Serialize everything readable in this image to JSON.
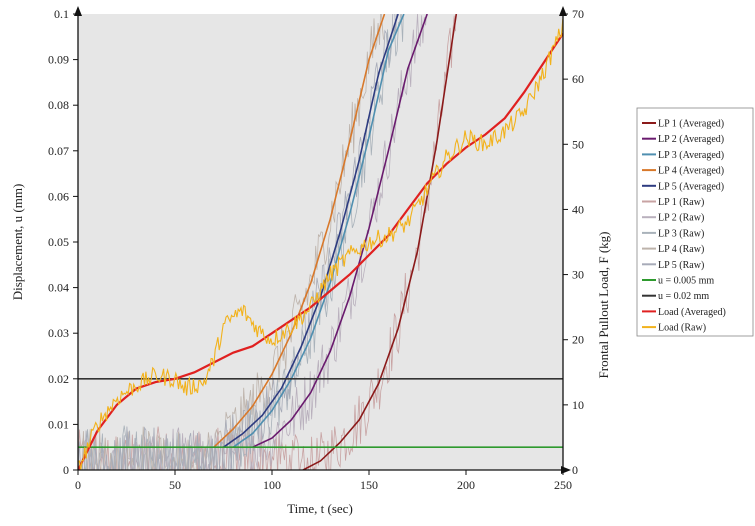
{
  "chart_data": {
    "type": "line",
    "xlabel": "Time, t (sec)",
    "ylabel_left": "Displacement,  u  (mm)",
    "ylabel_right": "Frontal Pullout Load, F (kg)",
    "xlim": [
      0,
      250
    ],
    "ylim_left": [
      0,
      0.1
    ],
    "ylim_right": [
      0,
      70
    ],
    "x_ticks": [
      "0",
      "50",
      "100",
      "150",
      "200",
      "250"
    ],
    "y_ticks_left": [
      "0",
      "0.01",
      "0.02",
      "0.03",
      "0.04",
      "0.05",
      "0.06",
      "0.07",
      "0.08",
      "0.09",
      "0.1"
    ],
    "y_ticks_right": [
      "0",
      "10",
      "20",
      "30",
      "40",
      "50",
      "60",
      "70"
    ],
    "grid": false,
    "legend_position": "right",
    "series": [
      {
        "name": "LP 1 (Averaged)",
        "axis": "left",
        "color": "#8b1a1a",
        "x": [
          116,
          125,
          135,
          145,
          155,
          165,
          175,
          185,
          195
        ],
        "y": [
          0,
          0.002,
          0.006,
          0.011,
          0.019,
          0.031,
          0.048,
          0.072,
          0.1
        ]
      },
      {
        "name": "LP 2 (Averaged)",
        "axis": "left",
        "color": "#6a1b6e",
        "x": [
          90,
          100,
          110,
          120,
          130,
          140,
          150,
          160,
          170,
          180
        ],
        "y": [
          0.005,
          0.007,
          0.011,
          0.017,
          0.026,
          0.038,
          0.053,
          0.07,
          0.088,
          0.1
        ]
      },
      {
        "name": "LP 3 (Averaged)",
        "axis": "left",
        "color": "#4f8fb0",
        "x": [
          80,
          90,
          100,
          110,
          120,
          130,
          140,
          150,
          160,
          168
        ],
        "y": [
          0.005,
          0.008,
          0.013,
          0.02,
          0.029,
          0.041,
          0.056,
          0.073,
          0.092,
          0.1
        ]
      },
      {
        "name": "LP 4 (Averaged)",
        "axis": "left",
        "color": "#d8782a",
        "x": [
          70,
          80,
          90,
          100,
          110,
          120,
          130,
          140,
          150,
          158
        ],
        "y": [
          0.005,
          0.009,
          0.014,
          0.021,
          0.03,
          0.041,
          0.055,
          0.072,
          0.09,
          0.1
        ]
      },
      {
        "name": "LP 5 (Averaged)",
        "axis": "left",
        "color": "#2d3b80",
        "x": [
          75,
          85,
          95,
          105,
          115,
          125,
          135,
          145,
          155,
          165
        ],
        "y": [
          0.005,
          0.008,
          0.012,
          0.018,
          0.027,
          0.038,
          0.052,
          0.068,
          0.087,
          0.1
        ]
      },
      {
        "name": "LP 1 (Raw)",
        "axis": "left",
        "color": "#c8a3a3",
        "x": [
          116,
          125,
          135,
          145,
          155,
          165,
          175,
          185,
          195
        ],
        "y": [
          0,
          0.002,
          0.006,
          0.011,
          0.019,
          0.031,
          0.048,
          0.072,
          0.1
        ]
      },
      {
        "name": "LP 2 (Raw)",
        "axis": "left",
        "color": "#b9b0bd",
        "x": [
          90,
          100,
          110,
          120,
          130,
          140,
          150,
          160,
          170,
          180
        ],
        "y": [
          0.005,
          0.007,
          0.011,
          0.017,
          0.026,
          0.038,
          0.053,
          0.07,
          0.088,
          0.1
        ]
      },
      {
        "name": "LP 3 (Raw)",
        "axis": "left",
        "color": "#a9b2ba",
        "x": [
          80,
          90,
          100,
          110,
          120,
          130,
          140,
          150,
          160,
          168
        ],
        "y": [
          0.005,
          0.008,
          0.013,
          0.02,
          0.029,
          0.041,
          0.056,
          0.073,
          0.092,
          0.1
        ]
      },
      {
        "name": "LP 4 (Raw)",
        "axis": "left",
        "color": "#bdb3ab",
        "x": [
          70,
          80,
          90,
          100,
          110,
          120,
          130,
          140,
          150,
          158
        ],
        "y": [
          0.005,
          0.009,
          0.014,
          0.021,
          0.03,
          0.041,
          0.055,
          0.072,
          0.09,
          0.1
        ]
      },
      {
        "name": "LP 5 (Raw)",
        "axis": "left",
        "color": "#a7abb8",
        "x": [
          75,
          85,
          95,
          105,
          115,
          125,
          135,
          145,
          155,
          165
        ],
        "y": [
          0.005,
          0.008,
          0.012,
          0.018,
          0.027,
          0.038,
          0.052,
          0.068,
          0.087,
          0.1
        ]
      },
      {
        "name": "u = 0.005 mm",
        "axis": "left",
        "color": "#2e9a2e",
        "x": [
          0,
          250
        ],
        "y": [
          0.005,
          0.005
        ]
      },
      {
        "name": "u = 0.02 mm",
        "axis": "left",
        "color": "#333333",
        "x": [
          0,
          250
        ],
        "y": [
          0.02,
          0.02
        ]
      },
      {
        "name": "Load (Averaged)",
        "axis": "right",
        "color": "#e02020",
        "x": [
          0,
          10,
          20,
          30,
          40,
          50,
          60,
          70,
          80,
          90,
          100,
          110,
          120,
          130,
          140,
          150,
          160,
          170,
          180,
          190,
          200,
          210,
          220,
          230,
          240,
          250
        ],
        "y": [
          0,
          6,
          10,
          12.5,
          13.5,
          14,
          15,
          16.5,
          18,
          19,
          21,
          23,
          25,
          27.5,
          30,
          33,
          36,
          40,
          44,
          47,
          49.5,
          51.5,
          54,
          58,
          62.5,
          67
        ]
      },
      {
        "name": "Load (Raw)",
        "axis": "right",
        "color": "#f2b21c",
        "x": [
          0,
          10,
          20,
          30,
          40,
          50,
          55,
          60,
          65,
          70,
          75,
          80,
          85,
          90,
          95,
          100,
          110,
          120,
          130,
          140,
          150,
          160,
          170,
          180,
          190,
          200,
          210,
          220,
          230,
          240,
          250
        ],
        "y": [
          0,
          7,
          11,
          13,
          14.5,
          14,
          12.5,
          13,
          13.5,
          17,
          22,
          23.5,
          24.5,
          22.5,
          21,
          20,
          22,
          25,
          30,
          33,
          35,
          36,
          38,
          43,
          48,
          51,
          50,
          52,
          55,
          61,
          68
        ]
      }
    ],
    "legend": [
      "LP 1 (Averaged)",
      "LP 2 (Averaged)",
      "LP 3 (Averaged)",
      "LP 4 (Averaged)",
      "LP 5 (Averaged)",
      "LP 1 (Raw)",
      "LP 2 (Raw)",
      "LP 3 (Raw)",
      "LP 4 (Raw)",
      "LP 5 (Raw)",
      "u = 0.005 mm",
      "u = 0.02 mm",
      "Load (Averaged)",
      "Load (Raw)"
    ]
  }
}
